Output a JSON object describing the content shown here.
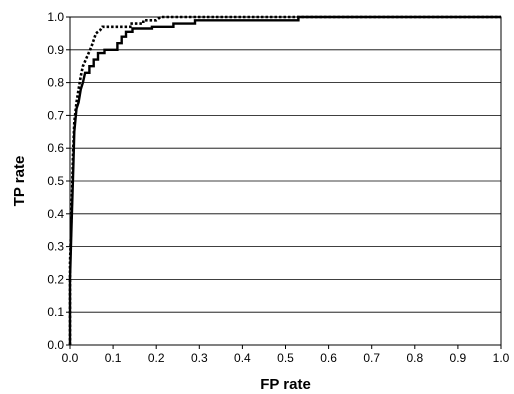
{
  "chart_data": {
    "type": "line",
    "xlabel": "FP rate",
    "ylabel": "TP rate",
    "xlim": [
      0.0,
      1.0
    ],
    "ylim": [
      0.0,
      1.0
    ],
    "x_ticks": [
      "0.0",
      "0.1",
      "0.2",
      "0.3",
      "0.4",
      "0.5",
      "0.6",
      "0.7",
      "0.8",
      "0.9",
      "1.0"
    ],
    "y_ticks": [
      "0.0",
      "0.1",
      "0.2",
      "0.3",
      "0.4",
      "0.5",
      "0.6",
      "0.7",
      "0.8",
      "0.9",
      "1.0"
    ],
    "grid": "horizontal",
    "legend": "none",
    "series": [
      {
        "style": "solid",
        "color": "#000000",
        "points": [
          [
            0.0,
            0.0
          ],
          [
            0.0,
            0.2
          ],
          [
            0.004,
            0.38
          ],
          [
            0.008,
            0.55
          ],
          [
            0.01,
            0.65
          ],
          [
            0.015,
            0.72
          ],
          [
            0.02,
            0.74
          ],
          [
            0.025,
            0.78
          ],
          [
            0.03,
            0.8
          ],
          [
            0.035,
            0.83
          ],
          [
            0.045,
            0.83
          ],
          [
            0.045,
            0.85
          ],
          [
            0.055,
            0.85
          ],
          [
            0.055,
            0.87
          ],
          [
            0.065,
            0.87
          ],
          [
            0.065,
            0.89
          ],
          [
            0.08,
            0.89
          ],
          [
            0.08,
            0.9
          ],
          [
            0.11,
            0.9
          ],
          [
            0.11,
            0.92
          ],
          [
            0.12,
            0.92
          ],
          [
            0.12,
            0.94
          ],
          [
            0.13,
            0.94
          ],
          [
            0.13,
            0.955
          ],
          [
            0.145,
            0.955
          ],
          [
            0.145,
            0.965
          ],
          [
            0.19,
            0.965
          ],
          [
            0.19,
            0.97
          ],
          [
            0.24,
            0.97
          ],
          [
            0.24,
            0.98
          ],
          [
            0.29,
            0.98
          ],
          [
            0.29,
            0.99
          ],
          [
            0.53,
            0.99
          ],
          [
            0.53,
            1.0
          ],
          [
            1.0,
            1.0
          ]
        ]
      },
      {
        "style": "dotted",
        "color": "#000000",
        "points": [
          [
            0.0,
            0.0
          ],
          [
            0.0,
            0.25
          ],
          [
            0.004,
            0.42
          ],
          [
            0.007,
            0.58
          ],
          [
            0.01,
            0.68
          ],
          [
            0.015,
            0.74
          ],
          [
            0.02,
            0.78
          ],
          [
            0.025,
            0.82
          ],
          [
            0.03,
            0.85
          ],
          [
            0.04,
            0.88
          ],
          [
            0.05,
            0.91
          ],
          [
            0.055,
            0.93
          ],
          [
            0.06,
            0.95
          ],
          [
            0.07,
            0.96
          ],
          [
            0.075,
            0.97
          ],
          [
            0.14,
            0.97
          ],
          [
            0.14,
            0.98
          ],
          [
            0.17,
            0.98
          ],
          [
            0.17,
            0.99
          ],
          [
            0.2,
            0.99
          ],
          [
            0.21,
            1.0
          ],
          [
            1.0,
            1.0
          ]
        ]
      }
    ]
  }
}
